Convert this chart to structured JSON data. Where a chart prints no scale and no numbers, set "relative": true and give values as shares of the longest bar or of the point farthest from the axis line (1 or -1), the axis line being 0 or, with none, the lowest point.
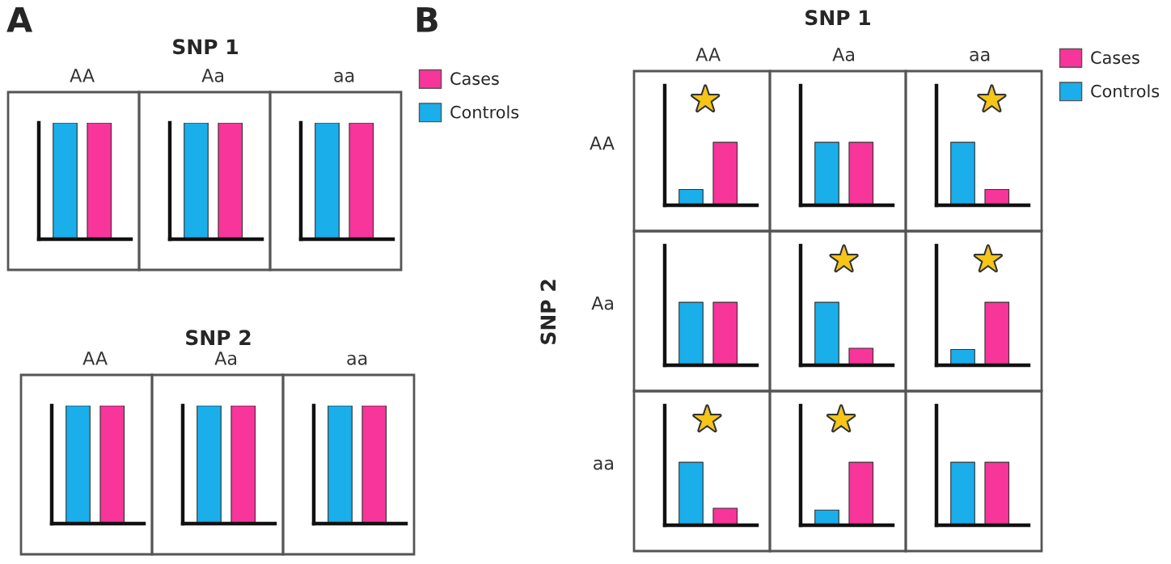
{
  "chart_data": [
    {
      "type": "bar",
      "relative": true,
      "annotations": [
        "A"
      ],
      "categories": [
        "AA"
      ],
      "series": [
        {
          "color": "#1aaeea",
          "values": [
            1
          ]
        },
        {
          "color": "#f7359a",
          "values": [
            1
          ]
        }
      ]
    },
    {
      "type": "bar",
      "relative": true,
      "annotations": [
        "SNP 1"
      ],
      "categories": [
        "Aa"
      ],
      "series": [
        {
          "color": "#1aaeea",
          "values": [
            1
          ]
        },
        {
          "color": "#f7359a",
          "values": [
            1
          ]
        }
      ]
    },
    {
      "type": "bar",
      "relative": true,
      "legend": "right",
      "categories": [
        "aa"
      ],
      "series": [
        {
          "name": "Controls",
          "color": "#1aaeea",
          "values": [
            1
          ]
        },
        {
          "name": "Cases",
          "color": "#f7359a",
          "values": [
            1
          ]
        }
      ]
    },
    {
      "type": "bar",
      "relative": true,
      "categories": [
        "AA"
      ],
      "series": [
        {
          "color": "#1aaeea",
          "values": [
            1
          ]
        },
        {
          "color": "#f7359a",
          "values": [
            1
          ]
        }
      ]
    },
    {
      "type": "bar",
      "relative": true,
      "annotations": [
        "SNP 2"
      ],
      "categories": [
        "Aa"
      ],
      "series": [
        {
          "color": "#1aaeea",
          "values": [
            1
          ]
        },
        {
          "color": "#f7359a",
          "values": [
            1
          ]
        }
      ]
    },
    {
      "type": "bar",
      "relative": true,
      "categories": [
        "aa"
      ],
      "series": [
        {
          "color": "#1aaeea",
          "values": [
            1
          ]
        },
        {
          "color": "#f7359a",
          "values": [
            1
          ]
        }
      ]
    },
    {
      "type": "bar",
      "relative": true,
      "ylabel": "AA",
      "annotations": [
        "B",
        "★"
      ],
      "categories": [
        "AA"
      ],
      "series": [
        {
          "color": "#1aaeea",
          "values": [
            0.25
          ]
        },
        {
          "color": "#f7359a",
          "values": [
            1
          ]
        }
      ]
    },
    {
      "type": "bar",
      "relative": true,
      "annotations": [
        "SNP 1"
      ],
      "categories": [
        "Aa"
      ],
      "series": [
        {
          "color": "#1aaeea",
          "values": [
            1
          ]
        },
        {
          "color": "#f7359a",
          "values": [
            1
          ]
        }
      ]
    },
    {
      "type": "bar",
      "relative": true,
      "annotations": [
        "★"
      ],
      "legend": "right",
      "categories": [
        "aa"
      ],
      "series": [
        {
          "name": "Controls",
          "color": "#1aaeea",
          "values": [
            1
          ]
        },
        {
          "name": "Cases",
          "color": "#f7359a",
          "values": [
            0.25
          ]
        }
      ]
    },
    {
      "type": "bar",
      "relative": true,
      "ylabel": "Aa",
      "annotations": [
        "SNP 2"
      ],
      "categories": [
        null
      ],
      "series": [
        {
          "color": "#1aaeea",
          "values": [
            1
          ]
        },
        {
          "color": "#f7359a",
          "values": [
            1
          ]
        }
      ]
    },
    {
      "type": "bar",
      "relative": true,
      "annotations": [
        "★"
      ],
      "categories": [
        null
      ],
      "series": [
        {
          "color": "#1aaeea",
          "values": [
            1
          ]
        },
        {
          "color": "#f7359a",
          "values": [
            0.27
          ]
        }
      ]
    },
    {
      "type": "bar",
      "relative": true,
      "annotations": [
        "★"
      ],
      "categories": [
        null
      ],
      "series": [
        {
          "color": "#1aaeea",
          "values": [
            0.25
          ]
        },
        {
          "color": "#f7359a",
          "values": [
            1
          ]
        }
      ]
    },
    {
      "type": "bar",
      "relative": true,
      "ylabel": "aa",
      "annotations": [
        "★"
      ],
      "categories": [
        null
      ],
      "series": [
        {
          "color": "#1aaeea",
          "values": [
            1
          ]
        },
        {
          "color": "#f7359a",
          "values": [
            0.27
          ]
        }
      ]
    },
    {
      "type": "bar",
      "relative": true,
      "annotations": [
        "★"
      ],
      "categories": [
        null
      ],
      "series": [
        {
          "color": "#1aaeea",
          "values": [
            0.24
          ]
        },
        {
          "color": "#f7359a",
          "values": [
            1
          ]
        }
      ]
    },
    {
      "type": "bar",
      "relative": true,
      "categories": [
        null
      ],
      "series": [
        {
          "color": "#1aaeea",
          "values": [
            1
          ]
        },
        {
          "color": "#f7359a",
          "values": [
            1
          ]
        }
      ]
    }
  ]
}
